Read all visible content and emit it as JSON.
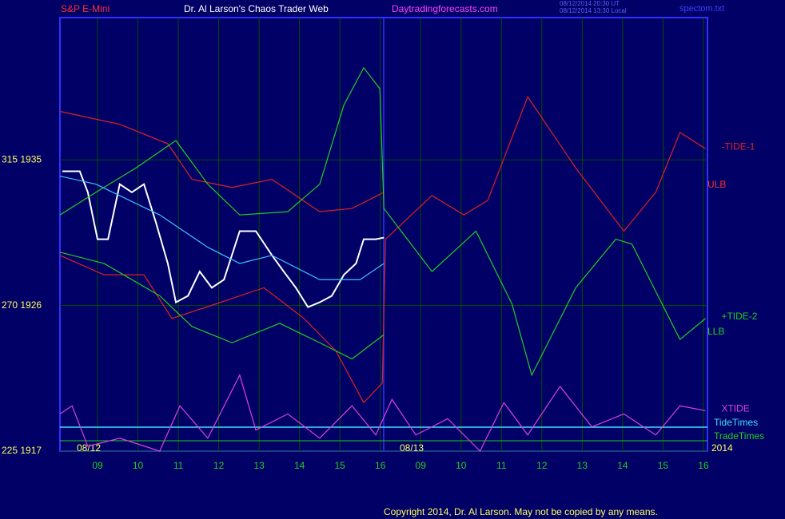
{
  "chart_data": {
    "type": "line",
    "title": "Dr. Al Larson's Chaos Trader Web",
    "subtitle": "S&P E-Mini",
    "site": "Daytradingforecasts.com",
    "timestamps": [
      "08/12/2014 20:30 UT",
      "08/12/2014 13:30 Local"
    ],
    "file": "spectom.txt",
    "footer": "Copyright 2014, Dr. Al Larson. May not be copied by any means.",
    "xlim": [
      -0.93,
      15.1
    ],
    "xticks": [
      {
        "value": 0,
        "label": "09"
      },
      {
        "value": 1,
        "label": "10"
      },
      {
        "value": 2,
        "label": "11"
      },
      {
        "value": 3,
        "label": "12"
      },
      {
        "value": 4,
        "label": "13"
      },
      {
        "value": 5,
        "label": "14"
      },
      {
        "value": 6,
        "label": "15"
      },
      {
        "value": 7,
        "label": "16"
      },
      {
        "value": 8,
        "label": "09"
      },
      {
        "value": 9,
        "label": "10"
      },
      {
        "value": 10,
        "label": "11"
      },
      {
        "value": 11,
        "label": "12"
      },
      {
        "value": 12,
        "label": "13"
      },
      {
        "value": 13,
        "label": "14"
      },
      {
        "value": 14,
        "label": "15"
      },
      {
        "value": 15,
        "label": "16"
      }
    ],
    "ylim": [
      1917,
      1943.8
    ],
    "yticks": [
      {
        "value": 1935,
        "label": "315  1935"
      },
      {
        "value": 1926,
        "label": "270  1926"
      },
      {
        "value": 1917,
        "label": "225  1917"
      }
    ],
    "grid": true,
    "date_labels": [
      "08/12",
      "08/13",
      "2014"
    ],
    "annotations": [
      "ULB",
      "LLB",
      "TideTimes",
      "TradeTimes"
    ],
    "series": [
      {
        "color": "#ffffff",
        "x": [
          -0.87,
          -0.44,
          -0.24,
          0,
          0.26,
          0.55,
          0.85,
          1.15,
          1.45,
          1.74,
          1.94,
          2.24,
          2.53,
          2.83,
          3.13,
          3.52,
          3.92,
          4.32,
          4.61,
          4.91,
          5.21,
          5.5,
          5.8,
          6.1,
          6.4,
          6.59,
          6.89,
          7.09
        ],
        "values": [
          1934.3,
          1934.3,
          1933.0,
          1930.1,
          1930.1,
          1933.5,
          1933.0,
          1933.5,
          1931.1,
          1928.6,
          1926.2,
          1926.6,
          1928.1,
          1927.1,
          1927.6,
          1930.6,
          1930.6,
          1929.1,
          1928.1,
          1927.1,
          1925.9,
          1926.2,
          1926.6,
          1927.9,
          1928.6,
          1930.1,
          1930.1,
          1930.2
        ]
      },
      {
        "color": "#e02020",
        "x": [
          -0.93,
          0.55,
          1.74,
          2.34,
          3.33,
          4.32,
          5.5,
          6.3,
          7.09
        ],
        "values": [
          1938.0,
          1937.2,
          1936.0,
          1933.8,
          1933.3,
          1933.8,
          1931.8,
          1932.0,
          1933.0
        ]
      },
      {
        "name": "-TIDE-1",
        "color": "#e02020",
        "x": [
          -0.93,
          0.16,
          1.15,
          1.84,
          2.93,
          4.12,
          5.11,
          5.9,
          6.59,
          7.05,
          7.13,
          8.28,
          9.07,
          9.66,
          10.65,
          11.84,
          13.03,
          13.82,
          14.42,
          15.05
        ],
        "values": [
          1929.1,
          1927.9,
          1927.9,
          1925.2,
          1926.1,
          1927.1,
          1925.2,
          1923.2,
          1920.0,
          1921.2,
          1930.1,
          1932.8,
          1931.6,
          1932.5,
          1938.9,
          1934.5,
          1930.6,
          1933.0,
          1936.7,
          1935.7
        ]
      },
      {
        "name": "+TIDE-2",
        "color": "#20d020",
        "x": [
          -0.93,
          -0.04,
          0.95,
          1.94,
          2.73,
          3.52,
          4.71,
          5.5,
          6.1,
          6.59,
          6.99,
          7.09,
          8.28,
          9.37,
          10.26,
          10.75,
          11.84,
          12.83,
          13.23,
          14.42,
          15.05
        ],
        "values": [
          1931.6,
          1933.0,
          1934.5,
          1936.2,
          1933.5,
          1931.6,
          1931.8,
          1933.5,
          1938.4,
          1940.7,
          1939.4,
          1932.0,
          1928.1,
          1930.6,
          1926.1,
          1921.7,
          1927.1,
          1930.1,
          1929.8,
          1923.9,
          1925.2
        ]
      },
      {
        "color": "#20d020",
        "x": [
          -0.93,
          0.16,
          1.54,
          2.34,
          3.33,
          4.51,
          5.5,
          6.3,
          7.09
        ],
        "values": [
          1929.3,
          1928.6,
          1926.6,
          1924.7,
          1923.7,
          1924.9,
          1923.7,
          1922.7,
          1924.2
        ]
      },
      {
        "color": "#40c0ff",
        "x": [
          -0.93,
          -0.04,
          1.54,
          2.73,
          3.52,
          4.32,
          5.5,
          6.5,
          7.09
        ],
        "values": [
          1934.0,
          1933.5,
          1931.6,
          1929.6,
          1928.6,
          1929.1,
          1927.6,
          1927.6,
          1928.6
        ]
      },
      {
        "name": "XTIDE",
        "color": "#e040e0",
        "x": [
          -0.93,
          -0.63,
          -0.24,
          0.55,
          1.54,
          2.04,
          2.73,
          3.52,
          3.92,
          4.71,
          5.5,
          6.3,
          6.89,
          7.29,
          7.88,
          8.67,
          9.47,
          10.06,
          10.65,
          11.45,
          12.24,
          13.03,
          13.82,
          14.42,
          15.05
        ],
        "values": [
          1919.3,
          1919.8,
          1917.3,
          1917.8,
          1917.0,
          1919.8,
          1917.8,
          1921.7,
          1918.3,
          1919.3,
          1917.8,
          1919.8,
          1918.0,
          1920.2,
          1918.0,
          1919.0,
          1917.0,
          1920.0,
          1918.0,
          1921.0,
          1918.5,
          1919.3,
          1918.0,
          1919.8,
          1919.5
        ]
      }
    ]
  }
}
